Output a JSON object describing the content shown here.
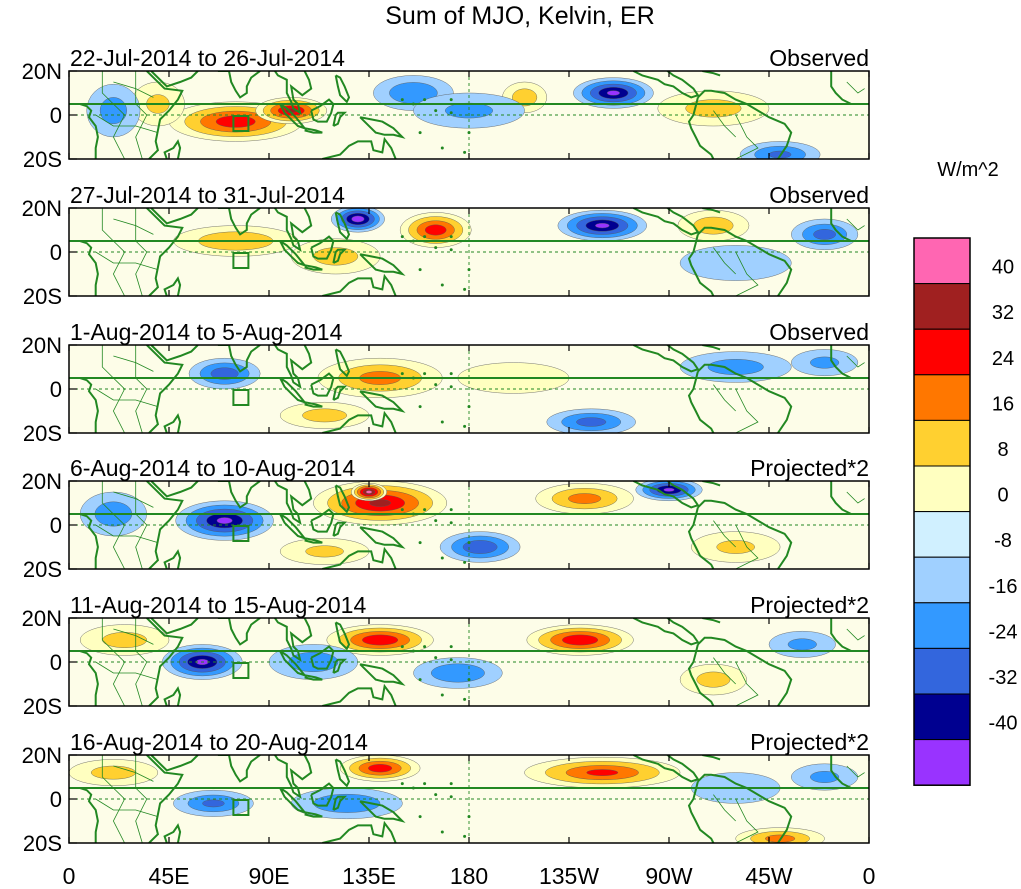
{
  "title": "Sum of MJO, Kelvin, ER",
  "colorbar": {
    "unit": "W/m^2",
    "levels": [
      "40",
      "32",
      "24",
      "16",
      "8",
      "0",
      "-8",
      "-16",
      "-24",
      "-32",
      "-40"
    ],
    "colors": [
      "#ff66b2",
      "#a02020",
      "#ff0000",
      "#ff7700",
      "#ffd030",
      "#ffffc0",
      "#d0f0ff",
      "#a0d0ff",
      "#3399ff",
      "#3366dd",
      "#000090",
      "#9933ff"
    ]
  },
  "map": {
    "lat_labels": [
      "20N",
      "0",
      "20S"
    ],
    "lon_labels": [
      "0",
      "45E",
      "90E",
      "135E",
      "180",
      "135W",
      "90W",
      "45W",
      "0"
    ],
    "coast_color": "#228822",
    "box_label": "region-box"
  },
  "panels": [
    {
      "date_range": "22-Jul-2014 to 26-Jul-2014",
      "status": "Observed",
      "anomalies": [
        {
          "lon": 75,
          "lat": -3,
          "rlon": 30,
          "rlat": 9,
          "value": 30
        },
        {
          "lon": 100,
          "lat": 2,
          "rlon": 16,
          "rlat": 6,
          "value": 34
        },
        {
          "lon": 40,
          "lat": 5,
          "rlon": 12,
          "rlat": 10,
          "value": 10
        },
        {
          "lon": 245,
          "lat": 10,
          "rlon": 18,
          "rlat": 7,
          "value": -34
        },
        {
          "lon": 205,
          "lat": 8,
          "rlon": 10,
          "rlat": 7,
          "value": 14
        },
        {
          "lon": 155,
          "lat": 10,
          "rlon": 18,
          "rlat": 8,
          "value": -16
        },
        {
          "lon": 180,
          "lat": 2,
          "rlon": 25,
          "rlat": 8,
          "value": -10
        },
        {
          "lon": 290,
          "lat": 3,
          "rlon": 25,
          "rlat": 8,
          "value": 12
        },
        {
          "lon": 320,
          "lat": -18,
          "rlon": 18,
          "rlat": 6,
          "value": -18
        },
        {
          "lon": 20,
          "lat": 2,
          "rlon": 12,
          "rlat": 12,
          "value": -12
        }
      ]
    },
    {
      "date_range": "27-Jul-2014 to 31-Jul-2014",
      "status": "Observed",
      "anomalies": [
        {
          "lon": 130,
          "lat": 15,
          "rlon": 12,
          "rlat": 6,
          "value": -38
        },
        {
          "lon": 240,
          "lat": 12,
          "rlon": 20,
          "rlat": 7,
          "value": -34
        },
        {
          "lon": 165,
          "lat": 10,
          "rlon": 16,
          "rlat": 8,
          "value": 30
        },
        {
          "lon": 75,
          "lat": 5,
          "rlon": 28,
          "rlat": 7,
          "value": 16
        },
        {
          "lon": 290,
          "lat": 12,
          "rlon": 16,
          "rlat": 7,
          "value": 14
        },
        {
          "lon": 340,
          "lat": 8,
          "rlon": 15,
          "rlat": 7,
          "value": -20
        },
        {
          "lon": 120,
          "lat": -2,
          "rlon": 20,
          "rlat": 8,
          "value": 12
        },
        {
          "lon": 300,
          "lat": -5,
          "rlon": 25,
          "rlat": 8,
          "value": -8
        }
      ]
    },
    {
      "date_range": "1-Aug-2014 to 5-Aug-2014",
      "status": "Observed",
      "anomalies": [
        {
          "lon": 70,
          "lat": 7,
          "rlon": 16,
          "rlat": 7,
          "value": -22
        },
        {
          "lon": 140,
          "lat": 5,
          "rlon": 28,
          "rlat": 9,
          "value": 20
        },
        {
          "lon": 115,
          "lat": -12,
          "rlon": 20,
          "rlat": 6,
          "value": 12
        },
        {
          "lon": 235,
          "lat": -15,
          "rlon": 20,
          "rlat": 6,
          "value": -20
        },
        {
          "lon": 300,
          "lat": 10,
          "rlon": 25,
          "rlat": 7,
          "value": -12
        },
        {
          "lon": 200,
          "lat": 5,
          "rlon": 25,
          "rlat": 7,
          "value": 8
        },
        {
          "lon": 340,
          "lat": 12,
          "rlon": 15,
          "rlat": 6,
          "value": -10
        }
      ]
    },
    {
      "date_range": "6-Aug-2014 to 10-Aug-2014",
      "status": "Projected*2",
      "anomalies": [
        {
          "lon": 70,
          "lat": 2,
          "rlon": 22,
          "rlat": 9,
          "value": -34
        },
        {
          "lon": 140,
          "lat": 10,
          "rlon": 30,
          "rlat": 10,
          "value": 34
        },
        {
          "lon": 135,
          "lat": 15,
          "rlon": 8,
          "rlat": 4,
          "value": 44
        },
        {
          "lon": 232,
          "lat": 12,
          "rlon": 22,
          "rlat": 7,
          "value": 20
        },
        {
          "lon": 270,
          "lat": 16,
          "rlon": 15,
          "rlat": 5,
          "value": -34
        },
        {
          "lon": 185,
          "lat": -10,
          "rlon": 18,
          "rlat": 7,
          "value": -24
        },
        {
          "lon": 20,
          "lat": 5,
          "rlon": 15,
          "rlat": 10,
          "value": -14
        },
        {
          "lon": 115,
          "lat": -12,
          "rlon": 20,
          "rlat": 6,
          "value": 10
        },
        {
          "lon": 300,
          "lat": -10,
          "rlon": 20,
          "rlat": 7,
          "value": 10
        }
      ]
    },
    {
      "date_range": "11-Aug-2014 to 15-Aug-2014",
      "status": "Projected*2",
      "anomalies": [
        {
          "lon": 60,
          "lat": 0,
          "rlon": 18,
          "rlat": 8,
          "value": -34
        },
        {
          "lon": 140,
          "lat": 10,
          "rlon": 24,
          "rlat": 7,
          "value": 32
        },
        {
          "lon": 230,
          "lat": 10,
          "rlon": 24,
          "rlat": 7,
          "value": 32
        },
        {
          "lon": 110,
          "lat": 0,
          "rlon": 20,
          "rlat": 8,
          "value": -14
        },
        {
          "lon": 175,
          "lat": -5,
          "rlon": 20,
          "rlat": 7,
          "value": -16
        },
        {
          "lon": 25,
          "lat": 10,
          "rlon": 20,
          "rlat": 7,
          "value": 12
        },
        {
          "lon": 290,
          "lat": -8,
          "rlon": 15,
          "rlat": 7,
          "value": 12
        },
        {
          "lon": 330,
          "lat": 8,
          "rlon": 15,
          "rlat": 6,
          "value": -10
        }
      ]
    },
    {
      "date_range": "16-Aug-2014 to 20-Aug-2014",
      "status": "Projected*2",
      "anomalies": [
        {
          "lon": 140,
          "lat": 14,
          "rlon": 18,
          "rlat": 6,
          "value": 30
        },
        {
          "lon": 240,
          "lat": 12,
          "rlon": 35,
          "rlat": 7,
          "value": 26
        },
        {
          "lon": 65,
          "lat": -2,
          "rlon": 18,
          "rlat": 6,
          "value": -18
        },
        {
          "lon": 125,
          "lat": -2,
          "rlon": 25,
          "rlat": 7,
          "value": -16
        },
        {
          "lon": 20,
          "lat": 12,
          "rlon": 20,
          "rlat": 6,
          "value": 12
        },
        {
          "lon": 320,
          "lat": -18,
          "rlon": 20,
          "rlat": 5,
          "value": 20
        },
        {
          "lon": 300,
          "lat": 5,
          "rlon": 20,
          "rlat": 7,
          "value": -8
        },
        {
          "lon": 340,
          "lat": 10,
          "rlon": 15,
          "rlat": 6,
          "value": -10
        }
      ]
    }
  ]
}
